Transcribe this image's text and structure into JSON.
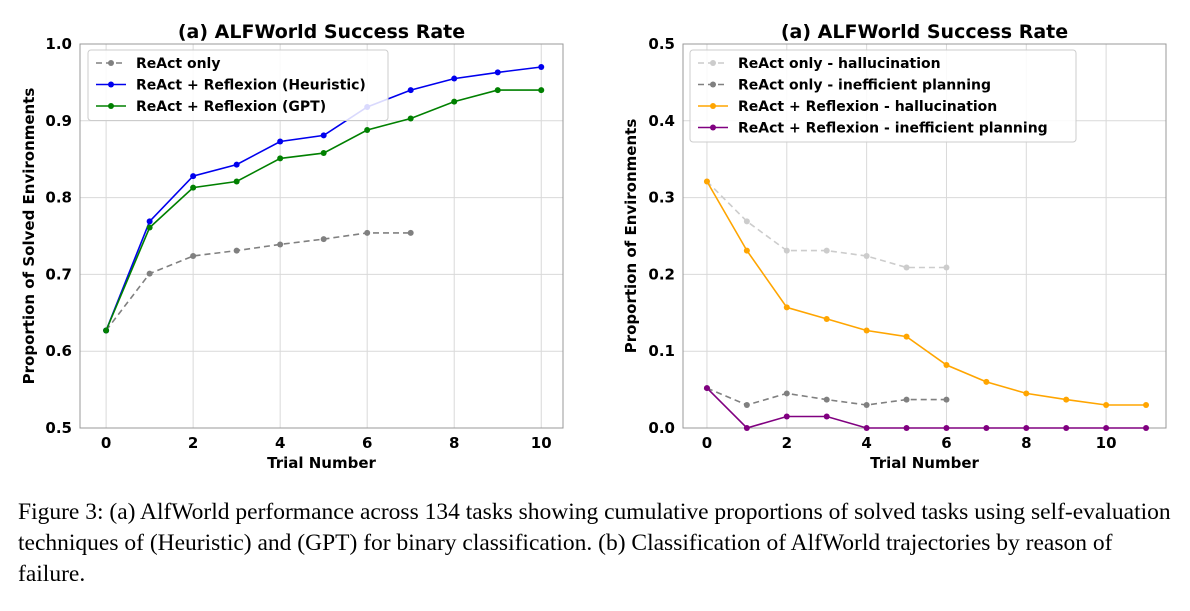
{
  "chart_data": [
    {
      "type": "line",
      "title": "(a) ALFWorld Success Rate",
      "xlabel": "Trial Number",
      "ylabel": "Proportion of Solved Environments",
      "xlim": [
        -0.6,
        10.5
      ],
      "ylim": [
        0.5,
        1.0
      ],
      "xticks": [
        0,
        2,
        4,
        6,
        8,
        10
      ],
      "yticks": [
        0.5,
        0.6,
        0.7,
        0.8,
        0.9,
        1.0
      ],
      "grid": true,
      "legend_position": "top-left",
      "series": [
        {
          "name": "ReAct only",
          "color": "#808080",
          "dashed": true,
          "light": false,
          "x": [
            0,
            1,
            2,
            3,
            4,
            5,
            6,
            7
          ],
          "values": [
            0.627,
            0.701,
            0.724,
            0.731,
            0.739,
            0.746,
            0.754,
            0.754
          ]
        },
        {
          "name": "ReAct + Reflexion (Heuristic)",
          "color": "#0000ee",
          "dashed": false,
          "light": false,
          "x": [
            0,
            1,
            2,
            3,
            4,
            5,
            6,
            7,
            8,
            9,
            10
          ],
          "values": [
            0.627,
            0.769,
            0.828,
            0.843,
            0.873,
            0.881,
            0.918,
            0.94,
            0.955,
            0.963,
            0.97
          ]
        },
        {
          "name": "ReAct + Reflexion (GPT)",
          "color": "#008000",
          "dashed": false,
          "light": false,
          "x": [
            0,
            1,
            2,
            3,
            4,
            5,
            6,
            7,
            8,
            9,
            10
          ],
          "values": [
            0.627,
            0.761,
            0.813,
            0.821,
            0.851,
            0.858,
            0.888,
            0.903,
            0.925,
            0.94,
            0.94
          ]
        }
      ]
    },
    {
      "type": "line",
      "title": "(a) ALFWorld Success Rate",
      "xlabel": "Trial Number",
      "ylabel": "Proportion of Environments",
      "xlim": [
        -0.6,
        11.5
      ],
      "ylim": [
        0.0,
        0.5
      ],
      "xticks": [
        0,
        2,
        4,
        6,
        8,
        10
      ],
      "yticks": [
        0.0,
        0.1,
        0.2,
        0.3,
        0.4,
        0.5
      ],
      "grid": true,
      "legend_position": "top-right",
      "series": [
        {
          "name": "ReAct only - hallucination",
          "color": "#cccccc",
          "dashed": true,
          "light": true,
          "x": [
            0,
            1,
            2,
            3,
            4,
            5,
            6
          ],
          "values": [
            0.321,
            0.269,
            0.231,
            0.231,
            0.224,
            0.209,
            0.209
          ]
        },
        {
          "name": "ReAct only - inefficient planning",
          "color": "#808080",
          "dashed": true,
          "light": false,
          "x": [
            0,
            1,
            2,
            3,
            4,
            5,
            6
          ],
          "values": [
            0.052,
            0.03,
            0.045,
            0.037,
            0.03,
            0.037,
            0.037
          ]
        },
        {
          "name": "ReAct + Reflexion - hallucination",
          "color": "#ffa500",
          "dashed": false,
          "light": false,
          "x": [
            0,
            1,
            2,
            3,
            4,
            5,
            6,
            7,
            8,
            9,
            10,
            11
          ],
          "values": [
            0.321,
            0.231,
            0.157,
            0.142,
            0.127,
            0.119,
            0.082,
            0.06,
            0.045,
            0.037,
            0.03,
            0.03
          ]
        },
        {
          "name": "ReAct + Reflexion - inefficient planning",
          "color": "#800080",
          "dashed": false,
          "light": false,
          "x": [
            0,
            1,
            2,
            3,
            4,
            5,
            6,
            7,
            8,
            9,
            10,
            11
          ],
          "values": [
            0.052,
            0.0,
            0.015,
            0.015,
            0.0,
            0.0,
            0.0,
            0.0,
            0.0,
            0.0,
            0.0,
            0.0
          ]
        }
      ]
    }
  ],
  "caption": "Figure 3: (a) AlfWorld performance across 134 tasks showing cumulative proportions of solved tasks using self-evaluation techniques of (Heuristic) and (GPT) for binary classification. (b) Classification of AlfWorld trajectories by reason of failure."
}
